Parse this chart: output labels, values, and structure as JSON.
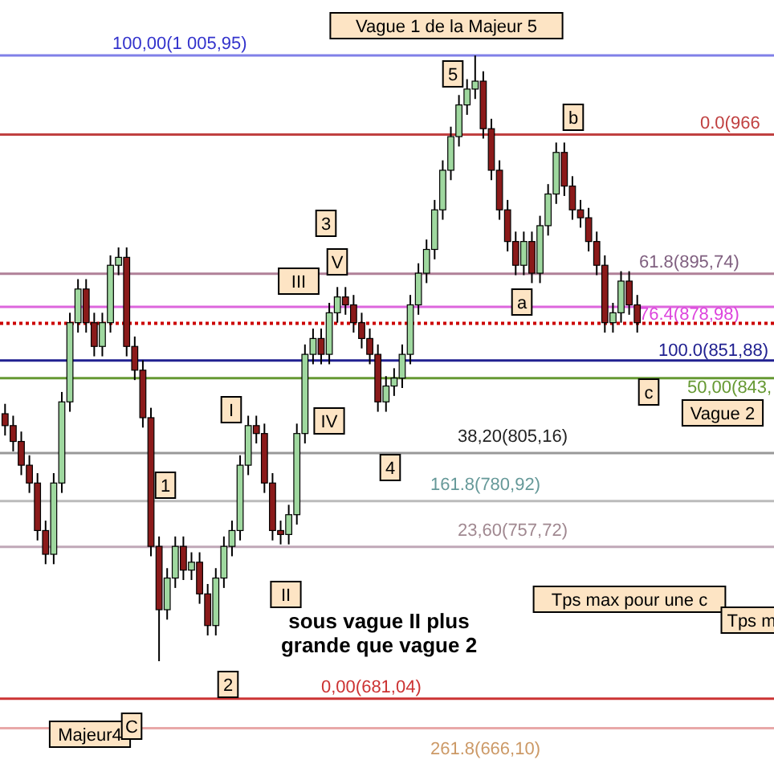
{
  "chart_data": {
    "type": "candlestick",
    "categories": [
      null,
      null,
      null,
      null,
      null,
      null,
      null,
      null,
      null,
      null,
      null,
      null,
      null,
      null,
      null,
      null,
      null,
      null,
      null,
      null,
      null,
      null,
      null,
      null,
      null,
      null,
      null,
      null,
      null,
      null,
      null,
      null,
      null,
      null,
      null,
      null,
      null,
      null,
      null,
      null,
      null,
      null,
      null,
      null,
      null,
      null,
      null,
      null,
      null,
      null,
      null,
      null,
      null,
      null,
      null,
      null,
      null,
      null,
      null,
      null,
      null,
      null,
      null,
      null,
      null,
      null,
      null,
      null,
      null,
      null,
      null,
      null,
      null,
      null,
      null,
      null,
      null,
      null,
      null
    ],
    "ylim": [
      642,
      1034
    ],
    "tick_labels": false,
    "ohlc": [
      [
        825,
        830,
        814,
        819
      ],
      [
        819,
        824,
        806,
        811
      ],
      [
        811,
        816,
        794,
        799
      ],
      [
        799,
        804,
        785,
        790
      ],
      [
        790,
        795,
        761,
        766
      ],
      [
        766,
        771,
        749,
        754
      ],
      [
        754,
        795,
        749,
        790
      ],
      [
        790,
        836,
        785,
        831
      ],
      [
        831,
        876,
        826,
        871
      ],
      [
        871,
        893,
        866,
        888
      ],
      [
        888,
        893,
        866,
        871
      ],
      [
        871,
        876,
        854,
        859
      ],
      [
        859,
        876,
        854,
        871
      ],
      [
        871,
        905,
        866,
        900
      ],
      [
        900,
        909,
        895,
        904
      ],
      [
        904,
        909,
        854,
        859
      ],
      [
        859,
        864,
        842,
        847
      ],
      [
        847,
        852,
        818,
        823
      ],
      [
        823,
        828,
        753,
        758
      ],
      [
        758,
        763,
        700,
        726
      ],
      [
        726,
        747,
        721,
        742
      ],
      [
        742,
        763,
        737,
        758
      ],
      [
        758,
        763,
        741,
        746
      ],
      [
        746,
        755,
        741,
        750
      ],
      [
        750,
        755,
        729,
        734
      ],
      [
        734,
        739,
        713,
        718
      ],
      [
        718,
        747,
        713,
        742
      ],
      [
        742,
        763,
        737,
        758
      ],
      [
        758,
        771,
        753,
        766
      ],
      [
        766,
        804,
        761,
        799
      ],
      [
        799,
        824,
        794,
        819
      ],
      [
        819,
        824,
        810,
        815
      ],
      [
        815,
        820,
        785,
        790
      ],
      [
        790,
        795,
        761,
        766
      ],
      [
        766,
        771,
        759,
        764
      ],
      [
        764,
        779,
        759,
        774
      ],
      [
        774,
        820,
        769,
        815
      ],
      [
        815,
        860,
        810,
        855
      ],
      [
        855,
        868,
        850,
        863
      ],
      [
        863,
        868,
        850,
        855
      ],
      [
        855,
        881,
        850,
        876
      ],
      [
        876,
        889,
        871,
        884
      ],
      [
        884,
        889,
        875,
        880
      ],
      [
        880,
        885,
        866,
        871
      ],
      [
        871,
        876,
        858,
        863
      ],
      [
        863,
        868,
        850,
        855
      ],
      [
        855,
        860,
        826,
        831
      ],
      [
        831,
        844,
        826,
        839
      ],
      [
        839,
        848,
        834,
        843
      ],
      [
        843,
        860,
        838,
        855
      ],
      [
        855,
        885,
        850,
        880
      ],
      [
        880,
        901,
        875,
        896
      ],
      [
        896,
        913,
        891,
        908
      ],
      [
        908,
        933,
        903,
        928
      ],
      [
        928,
        953,
        923,
        948
      ],
      [
        948,
        970,
        943,
        965
      ],
      [
        965,
        986,
        960,
        981
      ],
      [
        981,
        994,
        976,
        989
      ],
      [
        989,
        1005.95,
        984,
        993
      ],
      [
        993,
        998,
        964,
        969
      ],
      [
        969,
        974,
        943,
        948
      ],
      [
        948,
        953,
        923,
        928
      ],
      [
        928,
        933,
        907,
        912
      ],
      [
        912,
        917,
        895,
        900
      ],
      [
        900,
        917,
        895,
        912
      ],
      [
        912,
        917,
        891,
        896
      ],
      [
        896,
        925,
        891,
        920
      ],
      [
        920,
        941,
        915,
        936
      ],
      [
        936,
        962,
        931,
        957
      ],
      [
        957,
        962,
        935,
        940
      ],
      [
        940,
        945,
        923,
        928
      ],
      [
        928,
        933,
        919,
        924
      ],
      [
        924,
        929,
        907,
        912
      ],
      [
        912,
        917,
        895,
        900
      ],
      [
        900,
        905,
        866,
        871
      ],
      [
        871,
        881,
        866,
        876
      ],
      [
        876,
        897,
        871,
        892
      ],
      [
        892,
        897,
        875,
        880
      ],
      [
        880,
        885,
        866,
        871
      ]
    ],
    "ref_lines": [
      {
        "axis": "y",
        "value": 1005.95,
        "label": "100,00(1 005,95)",
        "color": "#8080e8"
      },
      {
        "axis": "y",
        "value": 966,
        "label": "0.0(966",
        "color": "#c04040"
      },
      {
        "axis": "y",
        "value": 895.74,
        "label": "61.8(895,74)",
        "color": "#b08098"
      },
      {
        "axis": "y",
        "value": 878.98,
        "label": "76.4(878,98)",
        "color": "#dd66dd"
      },
      {
        "axis": "y",
        "value": 870.7,
        "label": null,
        "color": "#cc0000",
        "line_style": "dotted"
      },
      {
        "axis": "y",
        "value": 851.88,
        "label": "100.0(851,88)",
        "color": "#202090"
      },
      {
        "axis": "y",
        "value": 843,
        "label": "50,00(843,",
        "color": "#669933"
      },
      {
        "axis": "y",
        "value": 805.16,
        "label": "38,20(805,16)",
        "color": "#999999"
      },
      {
        "axis": "y",
        "value": 780.92,
        "label": "161.8(780,92)",
        "color": "#bbbbbb"
      },
      {
        "axis": "y",
        "value": 757.72,
        "label": "23,60(757,72)",
        "color": "#c0a8b8"
      },
      {
        "axis": "y",
        "value": 681.04,
        "label": "0,00(681,04)",
        "color": "#cc3333"
      },
      {
        "axis": "y",
        "value": 666.1,
        "label": "261.8(666,10)",
        "color": "#e8a8a8"
      }
    ],
    "annotations": [
      "Vague 1 de la Majeur 5",
      "5",
      "b",
      "3",
      "III",
      "V",
      "a",
      "I",
      "IV",
      "4",
      "1",
      "II",
      "2",
      "c",
      "Majeur4",
      "C",
      "Vague 2",
      "Tps max pour une c",
      "Tps m",
      "sous vague II plus grande que vague 2"
    ]
  }
}
